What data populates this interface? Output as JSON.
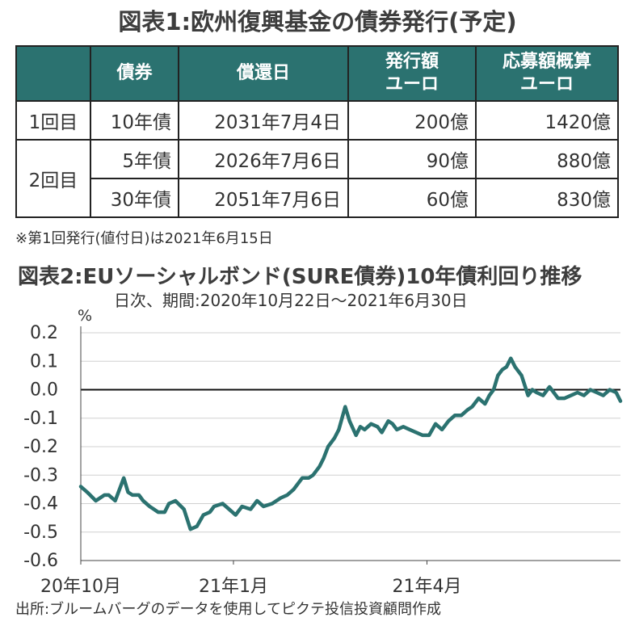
{
  "table_title": "図表1:欧州復興基金の債券発行(予定)",
  "table": {
    "headers": [
      "",
      "債券",
      "償還日",
      "発行額\nユーロ",
      "応募額概算\nユーロ"
    ],
    "rows": [
      {
        "round": "1回目",
        "bond": "10年債",
        "maturity": "2031年7月4日",
        "issue": "200億",
        "applications": "1420億"
      },
      {
        "round": "2回目",
        "bond": "5年債",
        "maturity": "2026年7月6日",
        "issue": "90億",
        "applications": "880億"
      },
      {
        "round": "",
        "bond": "30年債",
        "maturity": "2051年7月6日",
        "issue": "60億",
        "applications": "830億"
      }
    ]
  },
  "note": "※第1回発行(値付日)は2021年6月15日",
  "chart_title": "図表2:EUソーシャルボンド(SURE債券)10年債利回り推移",
  "chart_subtitle": "日次、期間:2020年10月22日～2021年6月30日",
  "source": "出所:ブルームバーグのデータを使用してピクテ投信投資顧問作成",
  "colors": {
    "header_bg": "#2b7270",
    "line": "#2b7270",
    "grid": "#d0d0d0"
  },
  "chart_data": {
    "type": "line",
    "ylabel": "%",
    "ylim": [
      -0.6,
      0.2
    ],
    "yticks": [
      "0.2",
      "0.1",
      "0.0",
      "-0.1",
      "-0.2",
      "-0.3",
      "-0.4",
      "-0.5",
      "-0.6"
    ],
    "xlim": [
      "2020-10-22",
      "2021-06-30"
    ],
    "xticks": [
      {
        "date": "2020-10-22",
        "label": "20年10月"
      },
      {
        "date": "2021-01-01",
        "label": "21年1月"
      },
      {
        "date": "2021-04-01",
        "label": "21年4月"
      }
    ],
    "grid": true,
    "series": [
      {
        "x": [
          "2020-10-22",
          "2020-10-25",
          "2020-10-29",
          "2020-11-02",
          "2020-11-04",
          "2020-11-07",
          "2020-11-09",
          "2020-11-11",
          "2020-11-13",
          "2020-11-15",
          "2020-11-18",
          "2020-11-20",
          "2020-11-23",
          "2020-11-25",
          "2020-11-27",
          "2020-11-30",
          "2020-12-02",
          "2020-12-05",
          "2020-12-09",
          "2020-12-12",
          "2020-12-15",
          "2020-12-18",
          "2020-12-21",
          "2020-12-23",
          "2020-12-27",
          "2020-12-30",
          "2021-01-02",
          "2021-01-05",
          "2021-01-09",
          "2021-01-12",
          "2021-01-15",
          "2021-01-19",
          "2021-01-23",
          "2021-01-26",
          "2021-01-29",
          "2021-02-02",
          "2021-02-05",
          "2021-02-07",
          "2021-02-10",
          "2021-02-12",
          "2021-02-14",
          "2021-02-17",
          "2021-02-19",
          "2021-02-22",
          "2021-02-24",
          "2021-02-27",
          "2021-03-01",
          "2021-03-03",
          "2021-03-06",
          "2021-03-09",
          "2021-03-11",
          "2021-03-14",
          "2021-03-16",
          "2021-03-18",
          "2021-03-21",
          "2021-03-24",
          "2021-03-27",
          "2021-03-30",
          "2021-04-02",
          "2021-04-05",
          "2021-04-08",
          "2021-04-11",
          "2021-04-14",
          "2021-04-17",
          "2021-04-20",
          "2021-04-22",
          "2021-04-25",
          "2021-04-28",
          "2021-04-30",
          "2021-05-02",
          "2021-05-04",
          "2021-05-06",
          "2021-05-08",
          "2021-05-10",
          "2021-05-12",
          "2021-05-15",
          "2021-05-18",
          "2021-05-20",
          "2021-05-22",
          "2021-05-25",
          "2021-05-28",
          "2021-06-01",
          "2021-06-04",
          "2021-06-07",
          "2021-06-10",
          "2021-06-13",
          "2021-06-16",
          "2021-06-19",
          "2021-06-22",
          "2021-06-25",
          "2021-06-28",
          "2021-06-30"
        ],
        "y": [
          -0.34,
          -0.36,
          -0.39,
          -0.37,
          -0.37,
          -0.39,
          -0.35,
          -0.31,
          -0.36,
          -0.37,
          -0.37,
          -0.39,
          -0.41,
          -0.42,
          -0.43,
          -0.43,
          -0.4,
          -0.39,
          -0.42,
          -0.49,
          -0.48,
          -0.44,
          -0.43,
          -0.41,
          -0.4,
          -0.42,
          -0.44,
          -0.41,
          -0.42,
          -0.39,
          -0.41,
          -0.4,
          -0.38,
          -0.37,
          -0.35,
          -0.31,
          -0.31,
          -0.3,
          -0.27,
          -0.24,
          -0.2,
          -0.17,
          -0.14,
          -0.06,
          -0.11,
          -0.16,
          -0.13,
          -0.14,
          -0.12,
          -0.13,
          -0.15,
          -0.11,
          -0.12,
          -0.14,
          -0.13,
          -0.14,
          -0.15,
          -0.16,
          -0.16,
          -0.12,
          -0.14,
          -0.11,
          -0.09,
          -0.09,
          -0.07,
          -0.06,
          -0.03,
          -0.05,
          -0.02,
          0.0,
          0.05,
          0.07,
          0.08,
          0.11,
          0.08,
          0.05,
          -0.02,
          0.0,
          -0.01,
          -0.02,
          0.01,
          -0.03,
          -0.03,
          -0.02,
          -0.01,
          -0.02,
          0.0,
          -0.01,
          -0.02,
          0.0,
          -0.01,
          -0.04
        ]
      }
    ]
  }
}
